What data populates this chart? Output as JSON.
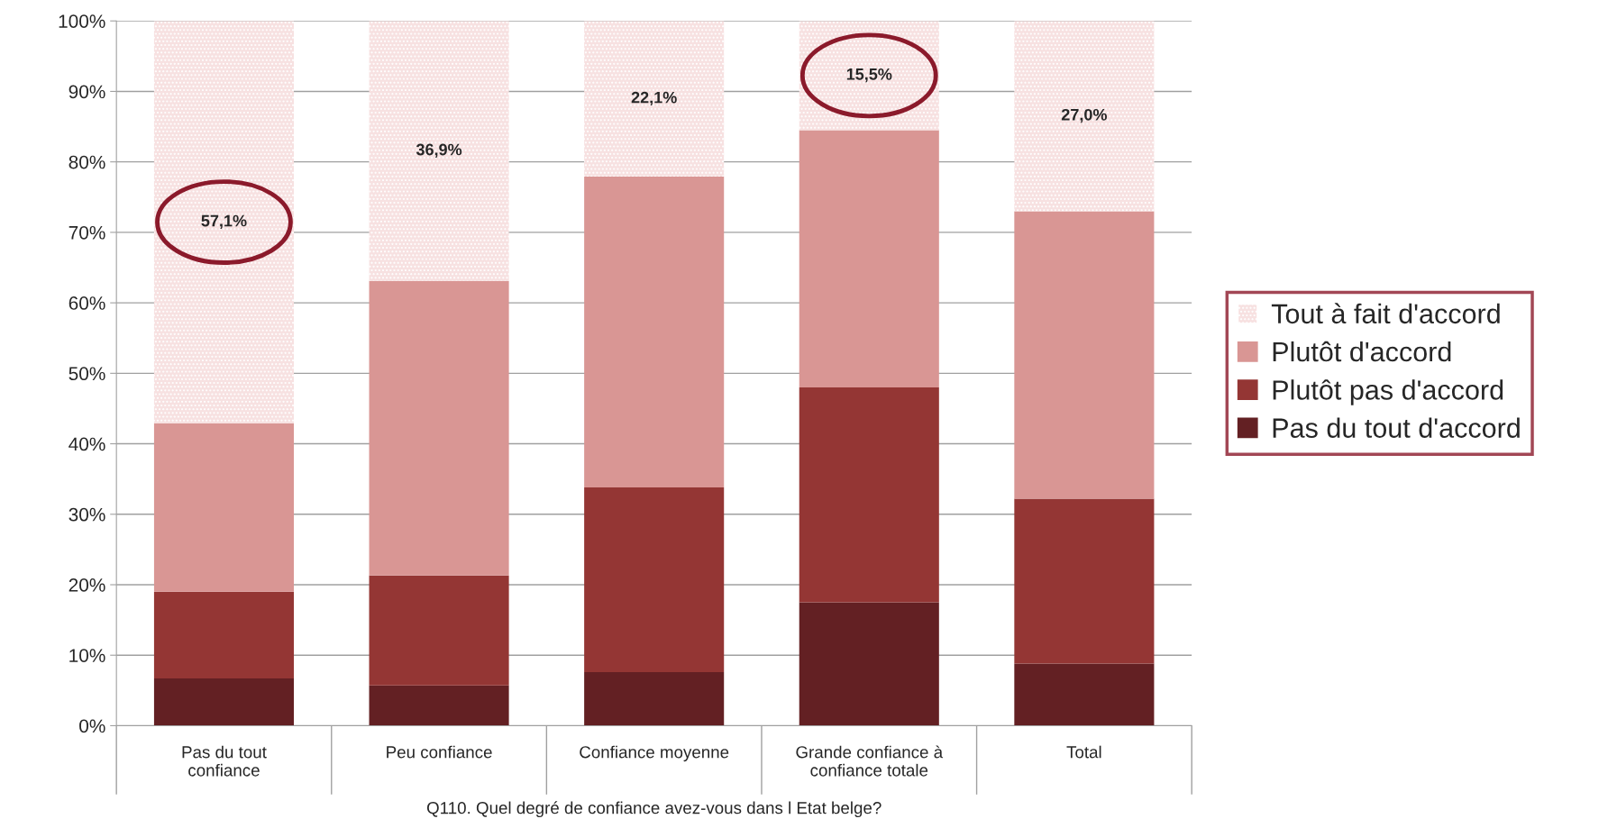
{
  "chart_data": {
    "type": "bar",
    "stacked": true,
    "categories": [
      "Pas du tout\nconfiance",
      "Peu confiance",
      "Confiance moyenne",
      "Grande confiance à\nconfiance totale",
      "Total"
    ],
    "xlabel": "Q110. Quel degré de confiance avez-vous dans l Etat belge?",
    "series": [
      {
        "name": "Pas du tout d'accord",
        "color": "#632023",
        "values": [
          6.7,
          5.7,
          7.6,
          17.5,
          8.8
        ]
      },
      {
        "name": "Plutôt pas d'accord",
        "color": "#943634",
        "values": [
          12.3,
          15.6,
          26.2,
          30.5,
          23.4
        ]
      },
      {
        "name": "Plutôt d'accord",
        "color": "#d99694",
        "values": [
          23.9,
          41.8,
          44.1,
          36.5,
          40.8
        ]
      },
      {
        "name": "Tout à fait d'accord",
        "color": "#f7e1e1",
        "values": [
          57.1,
          36.9,
          22.1,
          15.5,
          27.0
        ],
        "value_labels": [
          "57,1%",
          "36,9%",
          "22,1%",
          "15,5%",
          "27,0%"
        ]
      }
    ],
    "ylim": [
      0,
      100
    ],
    "yticks": [
      {
        "value": 0,
        "label": "0%"
      },
      {
        "value": 10,
        "label": "10%"
      },
      {
        "value": 20,
        "label": "20%"
      },
      {
        "value": 30,
        "label": "30%"
      },
      {
        "value": 40,
        "label": "40%"
      },
      {
        "value": 50,
        "label": "50%"
      },
      {
        "value": 60,
        "label": "60%"
      },
      {
        "value": 70,
        "label": "70%"
      },
      {
        "value": 80,
        "label": "80%"
      },
      {
        "value": 90,
        "label": "90%"
      },
      {
        "value": 100,
        "label": "100%"
      }
    ],
    "grid": "y",
    "legend": "right"
  }
}
